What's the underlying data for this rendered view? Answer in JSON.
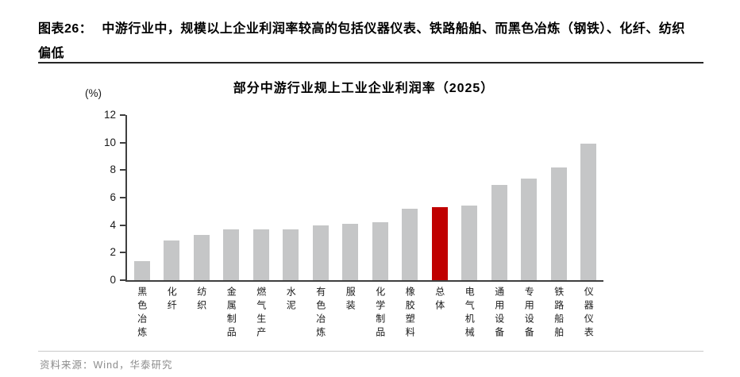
{
  "caption": {
    "label": "图表26：",
    "line1": "中游行业中，规模以上企业利润率较高的包括仪器仪表、铁路船舶、而黑色冶炼（钢铁）、化纤、纺织",
    "line2": "偏低"
  },
  "chart_data": {
    "type": "bar",
    "title": "部分中游行业规上工业企业利润率（2025）",
    "unit_label": "(%)",
    "categories": [
      "黑色冶炼",
      "化纤",
      "纺织",
      "金属制品",
      "燃气生产",
      "水泥",
      "有色冶炼",
      "服装",
      "化学制品",
      "橡胶塑料",
      "总体",
      "电气机械",
      "通用设备",
      "专用设备",
      "铁路船舶",
      "仪器仪表"
    ],
    "values": [
      1.4,
      2.9,
      3.3,
      3.7,
      3.7,
      3.7,
      4.0,
      4.1,
      4.2,
      5.2,
      5.3,
      5.4,
      6.9,
      7.4,
      8.2,
      9.9
    ],
    "highlight_category": "总体",
    "highlight_index": 10,
    "bar_color": "#c5c6c7",
    "highlight_color": "#c00000",
    "axis_color": "#3f3f3f",
    "ylim": [
      0,
      12
    ],
    "ytick_step": 2,
    "grid": false,
    "legend": "none"
  },
  "footer": {
    "source": "资料来源：Wind，华泰研究"
  }
}
